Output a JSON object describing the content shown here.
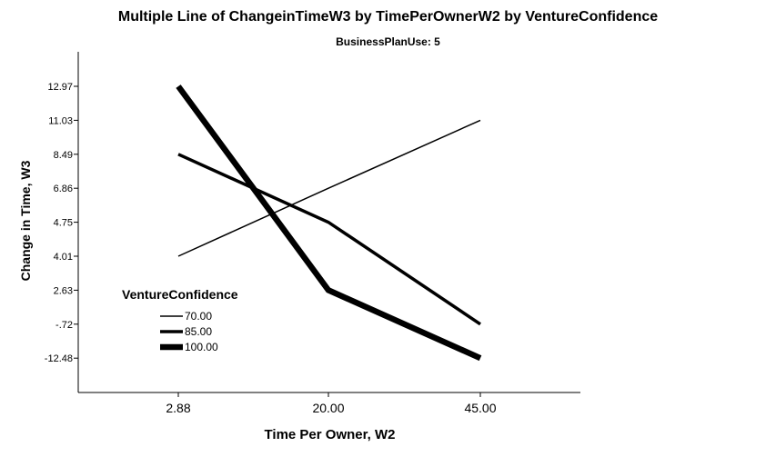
{
  "chart_data": {
    "type": "line",
    "title": "Multiple Line of ChangeinTimeW3 by TimePerOwnerW2 by VentureConfidence",
    "subtitle": "BusinessPlanUse: 5",
    "xlabel": "Time Per Owner, W2",
    "ylabel": "Change in Time, W3",
    "categories": [
      "2.88",
      "20.00",
      "45.00"
    ],
    "y_ticks": [
      "12.97",
      "11.03",
      "8.49",
      "6.86",
      "4.75",
      "4.01",
      "2.63",
      "-.72",
      "-12.48"
    ],
    "legend": {
      "title": "VentureConfidence",
      "placement": "lower-left"
    },
    "grid": false,
    "series": [
      {
        "name": "70.00",
        "values": [
          "4.01",
          "6.86",
          "11.03"
        ]
      },
      {
        "name": "85.00",
        "values": [
          "8.49",
          "4.75",
          "-.72"
        ]
      },
      {
        "name": "100.00",
        "values": [
          "12.97",
          "2.63",
          "-12.48"
        ]
      }
    ]
  }
}
